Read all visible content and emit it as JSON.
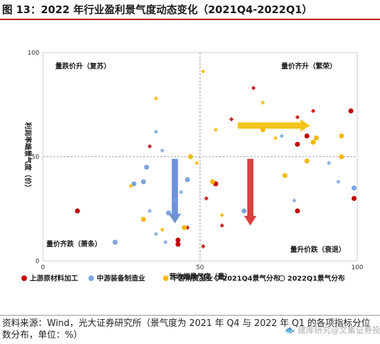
{
  "title": "图 13：2022 年行业盈利景气度动态变化（2021Q4-2022Q1）",
  "source": "资料来源：Wind，光大证券研究所（景气度为 2021 年 Q4 与 2022 年 Q1 的各项指标分位数分布，单位：%）",
  "watermark": "🐟 建库研究@文集证券投资",
  "colors": {
    "upstream": "#c00000",
    "midstream": "#7aa6dc",
    "downstream": "#f5b800",
    "arrow_blue": "#6e92d6",
    "arrow_red": "#d94040",
    "arrow_yellow": "#f5c518",
    "title_rule": "#c4161c"
  },
  "chart_data": {
    "type": "scatter",
    "title": "2022 年行业盈利景气度动态变化（2021Q4-2022Q1）",
    "xlabel": "营收端景气度（量）",
    "ylabel": "利润率端景气度（价）",
    "xlim": [
      0,
      100
    ],
    "ylim": [
      0,
      100
    ],
    "x_ticks": [
      "0",
      "50",
      "100"
    ],
    "y_ticks": [
      "0",
      "50",
      "100"
    ],
    "reference_lines": {
      "x": 50,
      "y": 50
    },
    "grid": false,
    "legend_position": "bottom",
    "legend": [
      {
        "label": "上游原材料加工",
        "marker": "filled-circle",
        "color_key": "upstream"
      },
      {
        "label": "中游装备制造业",
        "marker": "filled-circle",
        "color_key": "midstream"
      },
      {
        "label": "下游消费品业",
        "marker": "filled-circle",
        "color_key": "downstream"
      },
      {
        "label": "2021Q4景气分布",
        "marker": "diamond-outline"
      },
      {
        "label": "2022Q1景气分布",
        "marker": "circle-outline"
      }
    ],
    "quadrant_labels": {
      "top_left": "量跌价升（复苏）",
      "top_right": "量价齐升（繁荣）",
      "bottom_left": "量价齐跌（萧条）",
      "bottom_right": "量升价跌（衰退）"
    },
    "series": [
      {
        "name": "上游原材料加工 2021Q4",
        "group": "upstream",
        "period": "2021Q4",
        "marker": "diamond",
        "points": [
          [
            34,
            55
          ],
          [
            60,
            68
          ],
          [
            67,
            83
          ],
          [
            81,
            69
          ],
          [
            86,
            72
          ],
          [
            46,
            16
          ],
          [
            52,
            30
          ],
          [
            57,
            17
          ],
          [
            51,
            7
          ]
        ]
      },
      {
        "name": "上游原材料加工 2022Q1",
        "group": "upstream",
        "period": "2022Q1",
        "marker": "circle",
        "points": [
          [
            11,
            24
          ],
          [
            55,
            37
          ],
          [
            81,
            56
          ],
          [
            84,
            60
          ],
          [
            98,
            72
          ],
          [
            99,
            30
          ],
          [
            81,
            24
          ],
          [
            43,
            10
          ],
          [
            43,
            8
          ]
        ]
      },
      {
        "name": "中游装备制造业 2021Q4",
        "group": "midstream",
        "period": "2021Q4",
        "marker": "diamond",
        "points": [
          [
            36,
            62
          ],
          [
            38,
            53
          ],
          [
            42,
            29
          ],
          [
            44,
            33
          ],
          [
            34,
            24
          ],
          [
            36,
            13
          ],
          [
            39,
            9
          ],
          [
            76,
            60
          ],
          [
            91,
            47
          ],
          [
            94,
            38
          ],
          [
            80,
            29
          ]
        ]
      },
      {
        "name": "中游装备制造业 2022Q1",
        "group": "midstream",
        "period": "2022Q1",
        "marker": "circle",
        "points": [
          [
            23,
            9
          ],
          [
            29,
            37
          ],
          [
            32,
            38
          ],
          [
            33,
            45
          ],
          [
            40,
            23
          ],
          [
            46,
            39
          ],
          [
            64,
            24
          ],
          [
            99,
            35
          ]
        ]
      },
      {
        "name": "下游消费品业 2021Q4",
        "group": "downstream",
        "period": "2021Q4",
        "marker": "diamond",
        "points": [
          [
            36,
            78
          ],
          [
            51,
            91
          ],
          [
            55,
            63
          ],
          [
            49,
            47
          ],
          [
            57,
            22
          ],
          [
            28,
            36
          ],
          [
            38,
            15
          ],
          [
            70,
            76
          ],
          [
            74,
            59
          ]
        ]
      },
      {
        "name": "下游消费品业 2022Q1",
        "group": "downstream",
        "period": "2022Q1",
        "marker": "circle",
        "points": [
          [
            32,
            20
          ],
          [
            47,
            50
          ],
          [
            54,
            38
          ],
          [
            70,
            63
          ],
          [
            77,
            41
          ],
          [
            84,
            48
          ],
          [
            86,
            57
          ],
          [
            87,
            59
          ],
          [
            95,
            60
          ],
          [
            95,
            50
          ],
          [
            45,
            16
          ]
        ]
      }
    ],
    "arrows": [
      {
        "color_key": "arrow_blue",
        "from": [
          42,
          49
        ],
        "to": [
          42,
          18
        ]
      },
      {
        "color_key": "arrow_red",
        "from": [
          66,
          49
        ],
        "to": [
          66,
          17
        ]
      },
      {
        "color_key": "arrow_yellow",
        "from": [
          62,
          65
        ],
        "to": [
          85,
          65
        ]
      }
    ]
  }
}
